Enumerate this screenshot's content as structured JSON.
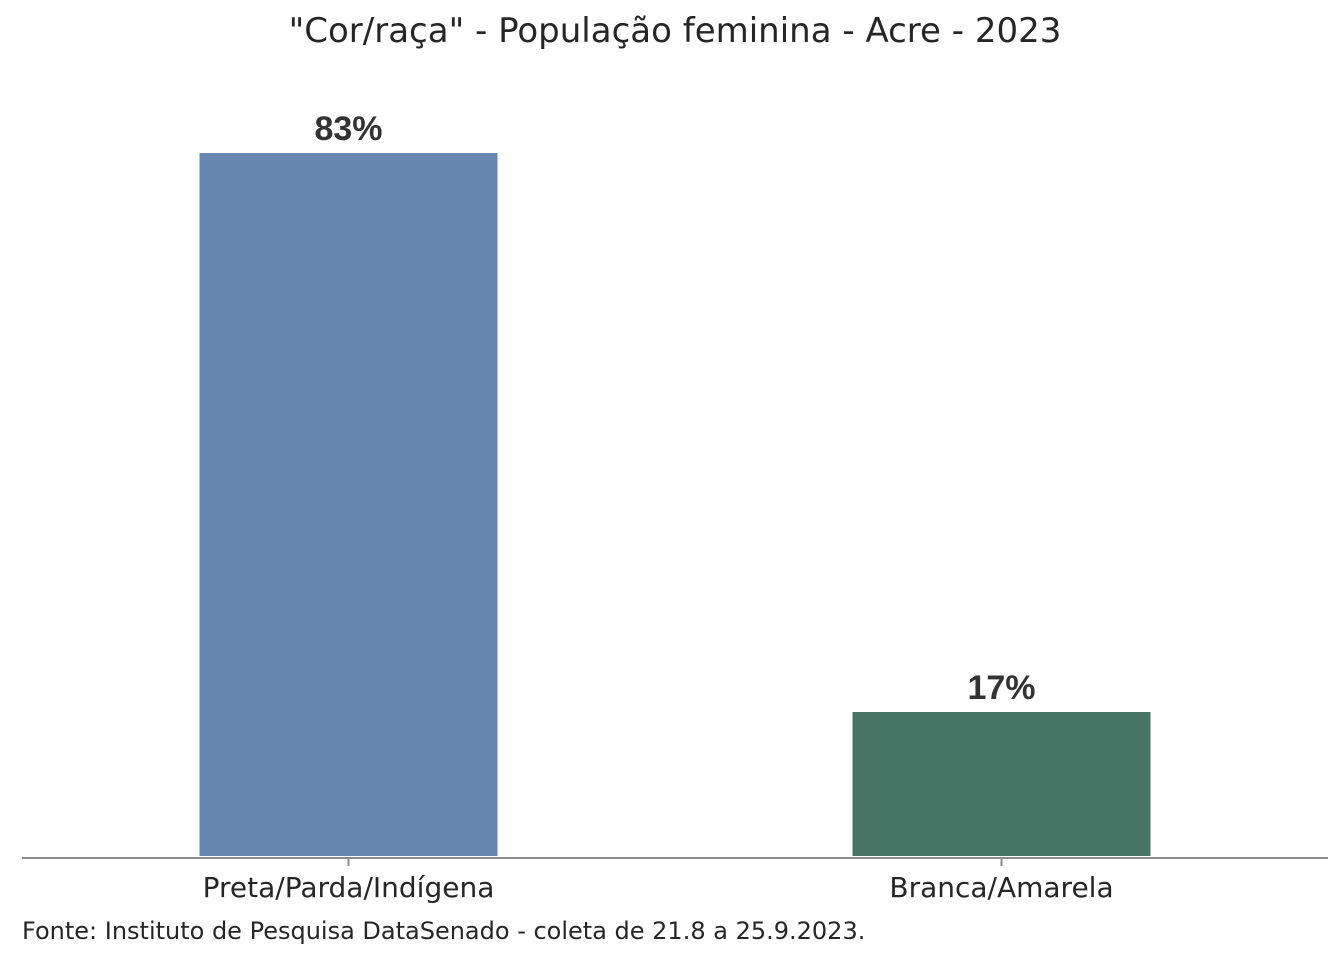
{
  "chart_data": {
    "type": "bar",
    "title": "\"Cor/raça\" - População feminina - Acre - 2023",
    "categories": [
      "Preta/Parda/Indígena",
      "Branca/Amarela"
    ],
    "values": [
      83,
      17
    ],
    "data_labels": [
      "83%",
      "17%"
    ],
    "colors": [
      "#6688b0",
      "#467565"
    ],
    "ylim": [
      0,
      100
    ],
    "grid": false,
    "legend": "none",
    "xlabel": "",
    "ylabel": ""
  },
  "source": "Fonte: Instituto de Pesquisa DataSenado - coleta de 21.8 a 25.9.2023."
}
